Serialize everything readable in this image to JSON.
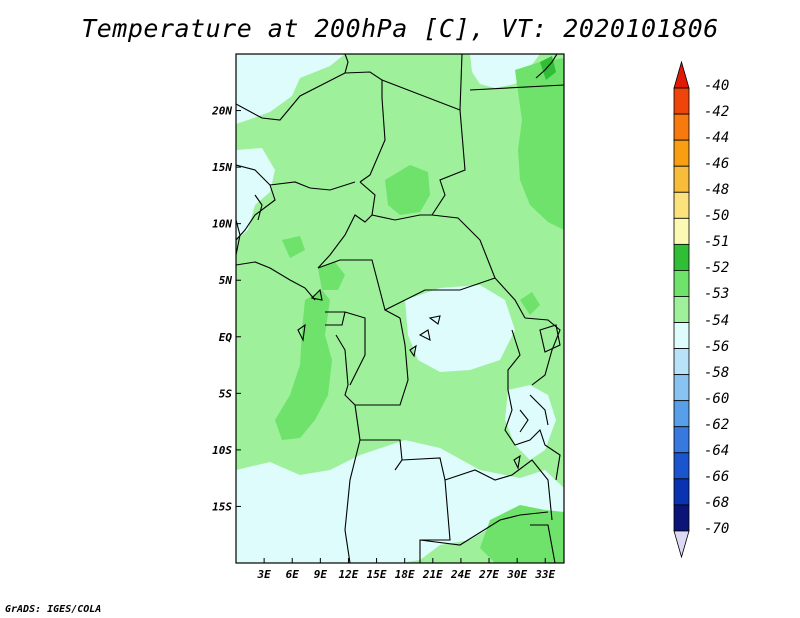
{
  "title": "Temperature at 200hPa [C], VT: 2020101806",
  "credit": "GrADS: IGES/COLA",
  "map": {
    "lon_range": [
      0,
      35
    ],
    "lat_range": [
      -20,
      25
    ],
    "lon_ticks": [
      {
        "value": 3,
        "label": "3E"
      },
      {
        "value": 6,
        "label": "6E"
      },
      {
        "value": 9,
        "label": "9E"
      },
      {
        "value": 12,
        "label": "12E"
      },
      {
        "value": 15,
        "label": "15E"
      },
      {
        "value": 18,
        "label": "18E"
      },
      {
        "value": 21,
        "label": "21E"
      },
      {
        "value": 24,
        "label": "24E"
      },
      {
        "value": 27,
        "label": "27E"
      },
      {
        "value": 30,
        "label": "30E"
      },
      {
        "value": 33,
        "label": "33E"
      }
    ],
    "lat_ticks": [
      {
        "value": 20,
        "label": "20N"
      },
      {
        "value": 15,
        "label": "15N"
      },
      {
        "value": 10,
        "label": "10N"
      },
      {
        "value": 5,
        "label": "5N"
      },
      {
        "value": 0,
        "label": "EQ"
      },
      {
        "value": -5,
        "label": "5S"
      },
      {
        "value": -10,
        "label": "10S"
      },
      {
        "value": -15,
        "label": "15S"
      }
    ],
    "background_class_color": "#9ef09b"
  },
  "colorbar": {
    "labels": [
      "-40",
      "-42",
      "-44",
      "-46",
      "-48",
      "-50",
      "-51",
      "-52",
      "-53",
      "-54",
      "-56",
      "-58",
      "-60",
      "-62",
      "-64",
      "-66",
      "-68",
      "-70"
    ],
    "colors": [
      "#e11a05",
      "#f0450a",
      "#f77a0f",
      "#f79e12",
      "#f8bc3c",
      "#fbe27d",
      "#fcf9b4",
      "#2fbe35",
      "#6ee26b",
      "#9ef09b",
      "#ddfcfb",
      "#b7e2f8",
      "#88c3f2",
      "#589fe9",
      "#3779df",
      "#1a55cf",
      "#0a33b1",
      "#0b1477",
      "#ddd9f5"
    ]
  }
}
